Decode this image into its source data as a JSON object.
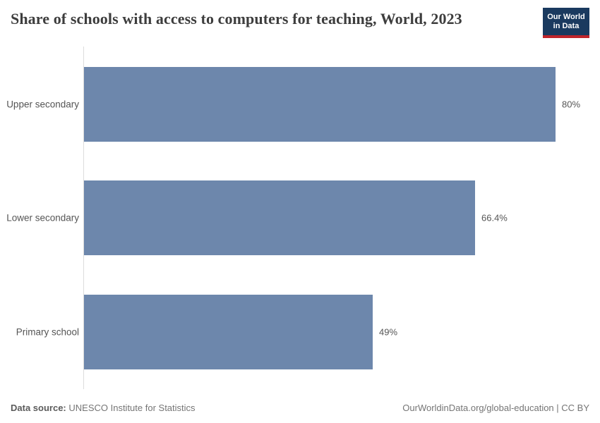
{
  "header": {
    "title": "Share of schools with access to computers for teaching, World, 2023",
    "logo": {
      "line1": "Our World",
      "line2": "in Data"
    }
  },
  "chart_data": {
    "type": "bar",
    "orientation": "horizontal",
    "title": "Share of schools with access to computers for teaching, World, 2023",
    "categories": [
      "Upper secondary",
      "Lower secondary",
      "Primary school"
    ],
    "values": [
      80,
      66.4,
      49
    ],
    "value_labels": [
      "80%",
      "66.4%",
      "49%"
    ],
    "unit": "%",
    "xlim": [
      0,
      85.7
    ],
    "grid": false,
    "legend": "none",
    "bar_color": "#6d87ac"
  },
  "footer": {
    "source_label": "Data source:",
    "source_text": "UNESCO Institute for Statistics",
    "attribution": "OurWorldinData.org/global-education | CC BY"
  },
  "colors": {
    "bar": "#6d87ac",
    "axis_line": "#dcdcdc",
    "title_text": "#3d3d3d",
    "label_text": "#555555",
    "logo_navy": "#1a3a5f",
    "logo_red": "#c0252b"
  }
}
